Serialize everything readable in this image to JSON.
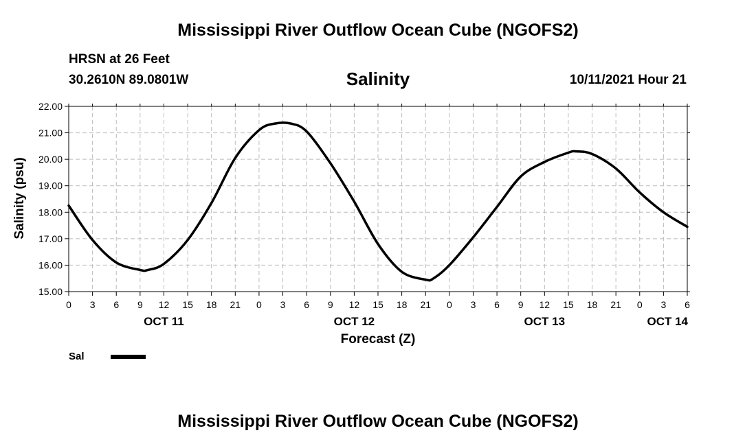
{
  "header": {
    "title": "Mississippi River Outflow Ocean Cube (NGOFS2)",
    "station": "HRSN at 26 Feet",
    "coordinates": "30.2610N  89.0801W",
    "run_time": "10/11/2021 Hour 21"
  },
  "footer": {
    "title": "Mississippi River Outflow Ocean Cube (NGOFS2)"
  },
  "chart_data": {
    "type": "line",
    "title": "Salinity",
    "xlabel": "Forecast (Z)",
    "ylabel": "Salinity (psu)",
    "x_unit": "forecast hour",
    "xlim": [
      0,
      78
    ],
    "ylim": [
      15.0,
      22.0
    ],
    "y_ticks": [
      "15.00",
      "16.00",
      "17.00",
      "18.00",
      "19.00",
      "20.00",
      "21.00",
      "22.00"
    ],
    "x_tick_labels": [
      "0",
      "3",
      "6",
      "9",
      "12",
      "15",
      "18",
      "21",
      "0",
      "3",
      "6",
      "9",
      "12",
      "15",
      "18",
      "21",
      "0",
      "3",
      "6",
      "9",
      "12",
      "15",
      "18",
      "21",
      "0",
      "3",
      "6"
    ],
    "date_labels": [
      {
        "label": "OCT 11",
        "hour": 12
      },
      {
        "label": "OCT 12",
        "hour": 36
      },
      {
        "label": "OCT 13",
        "hour": 60
      },
      {
        "label": "OCT 14",
        "hour": 78
      }
    ],
    "grid": true,
    "legend": {
      "position": "bottom-left",
      "entries": [
        {
          "label": "Sal",
          "color": "#000000"
        }
      ]
    },
    "series": [
      {
        "name": "Sal",
        "color": "#000000",
        "x": [
          0,
          3,
          6,
          9,
          10,
          12,
          15,
          18,
          21,
          24,
          26,
          28,
          30,
          33,
          36,
          39,
          42,
          45,
          46,
          48,
          51,
          54,
          57,
          60,
          63,
          64,
          66,
          69,
          72,
          75,
          78
        ],
        "y": [
          18.25,
          16.95,
          16.1,
          15.82,
          15.82,
          16.05,
          16.95,
          18.35,
          20.05,
          21.1,
          21.35,
          21.35,
          21.05,
          19.85,
          18.4,
          16.8,
          15.75,
          15.45,
          15.5,
          16.0,
          17.05,
          18.2,
          19.35,
          19.9,
          20.25,
          20.3,
          20.2,
          19.65,
          18.75,
          18.0,
          17.45
        ]
      }
    ]
  }
}
